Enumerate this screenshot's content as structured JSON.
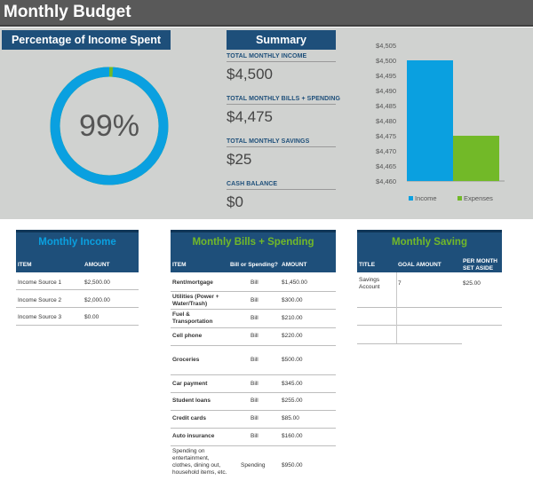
{
  "page": {
    "title": "Monthly Budget"
  },
  "percentage": {
    "heading": "Percentage of Income Spent",
    "value_label": "99%",
    "fraction": 0.99
  },
  "summary": {
    "heading": "Summary",
    "items": [
      {
        "label": "TOTAL MONTHLY INCOME",
        "value": "$4,500"
      },
      {
        "label": "TOTAL MONTHLY BILLS + SPENDING",
        "value": "$4,475"
      },
      {
        "label": "TOTAL MONTHLY SAVINGS",
        "value": "$25"
      },
      {
        "label": "CASH BALANCE",
        "value": "$0"
      }
    ]
  },
  "chart_data": {
    "type": "bar",
    "categories": [
      "Income",
      "Expenses"
    ],
    "values": [
      4500,
      4475
    ],
    "ylim": [
      4460,
      4505
    ],
    "yticks": [
      "$4,460",
      "$4,465",
      "$4,470",
      "$4,475",
      "$4,480",
      "$4,485",
      "$4,490",
      "$4,495",
      "$4,500",
      "$4,505"
    ],
    "series_colors": [
      "#0aa0e0",
      "#72b928"
    ],
    "legend": [
      "Income",
      "Expenses"
    ],
    "title": "",
    "xlabel": "",
    "ylabel": ""
  },
  "income": {
    "heading": "Monthly Income",
    "columns": [
      "ITEM",
      "AMOUNT"
    ],
    "rows": [
      {
        "item": "Income Source 1",
        "amount": "$2,500.00"
      },
      {
        "item": "Income Source 2",
        "amount": "$2,000.00"
      },
      {
        "item": "Income Source 3",
        "amount": "$0.00"
      }
    ]
  },
  "bills": {
    "heading": "Monthly Bills + Spending",
    "columns": [
      "ITEM",
      "Bill or Spending?",
      "AMOUNT"
    ],
    "rows": [
      {
        "item": "Rent/mortgage",
        "type": "Bill",
        "amount": "$1,450.00"
      },
      {
        "item": "Utilities (Power + Water/Trash)",
        "type": "Bill",
        "amount": "$300.00"
      },
      {
        "item": "Fuel & Transportation",
        "type": "Bill",
        "amount": "$210.00"
      },
      {
        "item": "Cell phone",
        "type": "Bill",
        "amount": "$220.00"
      },
      {
        "item": "Groceries",
        "type": "Bill",
        "amount": "$500.00"
      },
      {
        "item": "Car payment",
        "type": "Bill",
        "amount": "$345.00"
      },
      {
        "item": "Student loans",
        "type": "Bill",
        "amount": "$255.00"
      },
      {
        "item": "Credit cards",
        "type": "Bill",
        "amount": "$85.00"
      },
      {
        "item": "Auto insurance",
        "type": "Bill",
        "amount": "$160.00"
      },
      {
        "item": "Spending on entertainment, clothes, dining out, household items, etc.",
        "type": "Spending",
        "amount": "$950.00"
      }
    ]
  },
  "saving": {
    "heading": "Monthly Saving",
    "columns": [
      "TITLE",
      "GOAL AMOUNT",
      "PER MONTH SET ASIDE"
    ],
    "rows": [
      {
        "title": "Savings Account",
        "goal": "7",
        "per_month": "$25.00"
      }
    ]
  },
  "colors": {
    "accent": "#1e4f7a",
    "green_heading": "#72b928",
    "blue_heading": "#0aa0e0",
    "donut": "#0aa0e0",
    "donut_rest": "#72b928"
  }
}
